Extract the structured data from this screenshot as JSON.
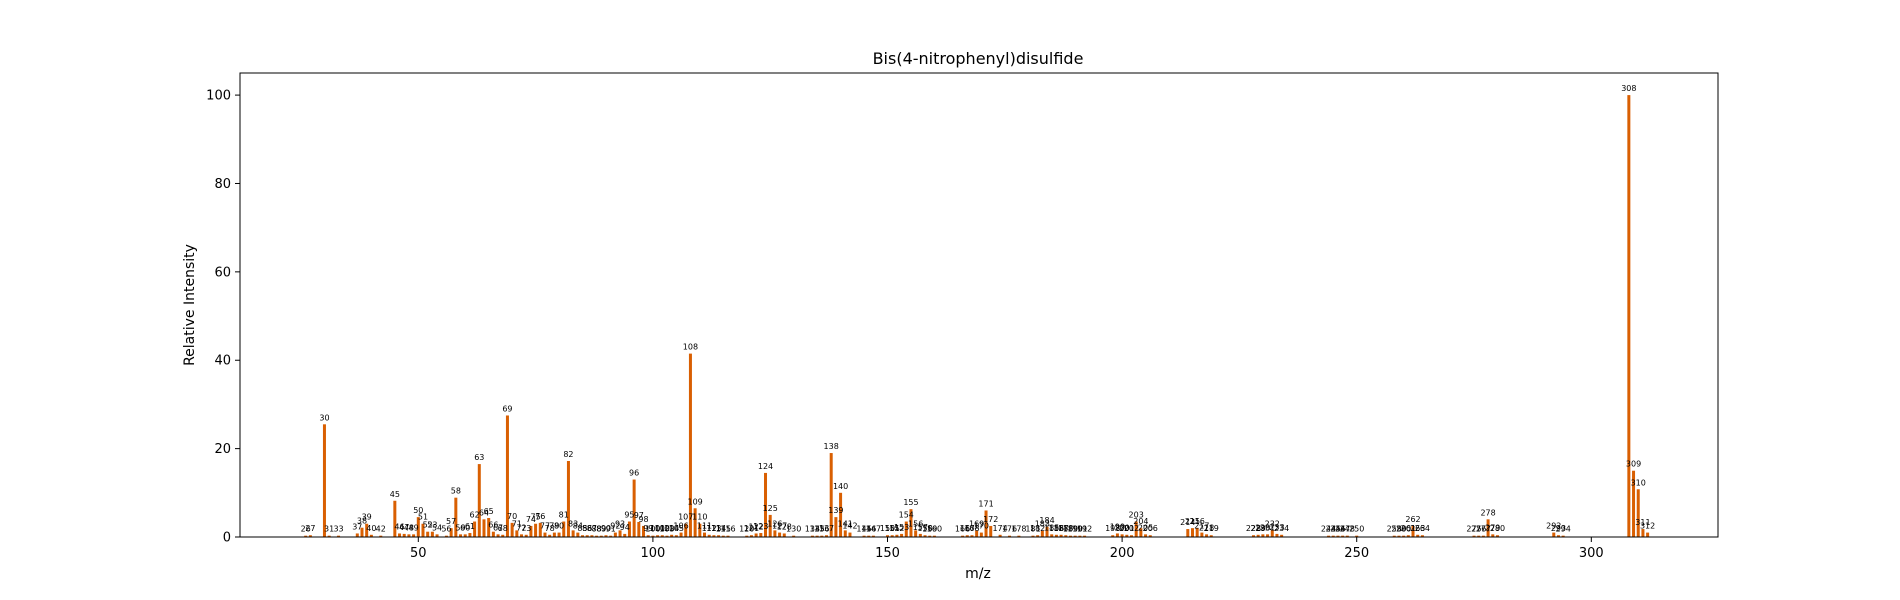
{
  "chart_data": {
    "type": "bar",
    "title": "Bis(4-nitrophenyl)disulfide",
    "xlabel": "m/z",
    "ylabel": "Relative Intensity",
    "xlim": [
      12,
      327
    ],
    "ylim": [
      0,
      105
    ],
    "xticks": [
      50,
      100,
      150,
      200,
      250,
      300
    ],
    "yticks": [
      0,
      20,
      40,
      60,
      80,
      100
    ],
    "bar_color": "#d95f02",
    "x": [
      26,
      27,
      30,
      31,
      33,
      37,
      38,
      39,
      40,
      42,
      45,
      46,
      47,
      48,
      49,
      50,
      51,
      52,
      53,
      54,
      56,
      57,
      58,
      59,
      60,
      61,
      62,
      63,
      64,
      65,
      66,
      67,
      68,
      69,
      70,
      71,
      72,
      73,
      74,
      75,
      76,
      77,
      78,
      79,
      80,
      81,
      82,
      83,
      84,
      85,
      86,
      87,
      88,
      89,
      90,
      91,
      92,
      93,
      94,
      95,
      96,
      97,
      98,
      99,
      100,
      101,
      102,
      103,
      104,
      105,
      106,
      107,
      108,
      109,
      110,
      111,
      112,
      113,
      114,
      115,
      116,
      120,
      121,
      122,
      123,
      124,
      125,
      126,
      127,
      128,
      130,
      134,
      135,
      136,
      137,
      138,
      139,
      140,
      141,
      142,
      145,
      146,
      147,
      150,
      151,
      152,
      153,
      154,
      155,
      156,
      157,
      158,
      159,
      160,
      166,
      167,
      168,
      169,
      170,
      171,
      172,
      174,
      176,
      178,
      181,
      182,
      183,
      184,
      185,
      186,
      187,
      188,
      189,
      190,
      191,
      192,
      198,
      199,
      200,
      201,
      202,
      203,
      204,
      205,
      206,
      214,
      215,
      216,
      217,
      218,
      219,
      228,
      229,
      230,
      231,
      232,
      233,
      234,
      244,
      245,
      246,
      247,
      248,
      250,
      258,
      259,
      260,
      261,
      262,
      263,
      264,
      275,
      276,
      277,
      278,
      279,
      280,
      292,
      293,
      294,
      308,
      309,
      310,
      311,
      312
    ],
    "values": [
      0.3,
      0.4,
      25.5,
      0.3,
      0.3,
      0.8,
      2.1,
      3.0,
      0.5,
      0.3,
      8.2,
      0.8,
      0.7,
      0.6,
      0.6,
      4.5,
      3.0,
      1.2,
      1.2,
      0.6,
      0.3,
      2.0,
      8.9,
      0.6,
      0.6,
      0.9,
      3.5,
      16.5,
      4.0,
      4.3,
      1.2,
      0.6,
      0.5,
      27.5,
      3.2,
      1.5,
      0.6,
      0.5,
      2.5,
      3.0,
      3.2,
      1.0,
      0.5,
      1.0,
      1.0,
      3.5,
      17.2,
      1.5,
      1.0,
      0.4,
      0.4,
      0.4,
      0.3,
      0.3,
      0.4,
      0.3,
      1.0,
      1.5,
      0.7,
      3.5,
      13.0,
      3.4,
      2.5,
      0.4,
      0.3,
      0.4,
      0.4,
      0.3,
      0.5,
      0.4,
      1.0,
      3.0,
      41.5,
      6.5,
      3.0,
      1.0,
      0.5,
      0.4,
      0.4,
      0.3,
      0.3,
      0.3,
      0.4,
      0.8,
      0.9,
      14.5,
      5.0,
      1.5,
      1.0,
      0.8,
      0.3,
      0.3,
      0.3,
      0.3,
      0.4,
      19.0,
      4.5,
      10.0,
      1.5,
      1.0,
      0.3,
      0.3,
      0.3,
      0.4,
      0.4,
      0.5,
      0.7,
      3.5,
      6.3,
      1.5,
      0.7,
      0.4,
      0.3,
      0.3,
      0.3,
      0.4,
      0.4,
      1.5,
      1.0,
      6.0,
      2.5,
      0.5,
      0.3,
      0.3,
      0.3,
      0.4,
      1.5,
      2.3,
      0.6,
      0.5,
      0.5,
      0.4,
      0.3,
      0.3,
      0.3,
      0.3,
      0.4,
      0.8,
      0.6,
      0.5,
      0.4,
      3.5,
      2.0,
      0.6,
      0.4,
      1.8,
      2.0,
      2.0,
      1.0,
      0.6,
      0.4,
      0.4,
      0.5,
      0.6,
      0.6,
      1.5,
      0.7,
      0.5,
      0.3,
      0.3,
      0.3,
      0.3,
      0.3,
      0.3,
      0.3,
      0.3,
      0.3,
      0.4,
      2.5,
      0.5,
      0.4,
      0.3,
      0.3,
      0.3,
      4.0,
      0.6,
      0.4,
      1.0,
      0.4,
      0.3,
      100.0,
      15.0,
      10.8,
      1.8,
      1.0
    ],
    "peak_labels": [
      26,
      27,
      30,
      31,
      33,
      37,
      38,
      39,
      40,
      42,
      45,
      46,
      47,
      48,
      49,
      50,
      51,
      52,
      53,
      54,
      56,
      57,
      58,
      59,
      60,
      61,
      62,
      63,
      64,
      65,
      66,
      67,
      68,
      69,
      70,
      71,
      72,
      73,
      74,
      75,
      76,
      77,
      78,
      79,
      80,
      81,
      82,
      83,
      84,
      85,
      86,
      87,
      88,
      89,
      90,
      91,
      92,
      93,
      94,
      95,
      96,
      97,
      98,
      99,
      100,
      101,
      102,
      103,
      104,
      105,
      106,
      107,
      108,
      109,
      110,
      111,
      112,
      113,
      114,
      115,
      116,
      120,
      121,
      122,
      123,
      124,
      125,
      126,
      127,
      128,
      130,
      134,
      135,
      136,
      137,
      138,
      139,
      140,
      141,
      142,
      145,
      146,
      147,
      150,
      151,
      152,
      153,
      154,
      155,
      156,
      157,
      158,
      159,
      160,
      166,
      167,
      168,
      169,
      170,
      171,
      172,
      174,
      176,
      178,
      181,
      182,
      183,
      184,
      185,
      186,
      187,
      188,
      189,
      190,
      191,
      192,
      198,
      199,
      200,
      201,
      202,
      203,
      204,
      205,
      206,
      214,
      215,
      216,
      217,
      218,
      219,
      228,
      229,
      230,
      231,
      232,
      233,
      234,
      244,
      245,
      246,
      247,
      248,
      250,
      258,
      259,
      260,
      261,
      262,
      263,
      264,
      275,
      276,
      277,
      278,
      279,
      280,
      292,
      293,
      294,
      308,
      309,
      310,
      311,
      312
    ]
  }
}
